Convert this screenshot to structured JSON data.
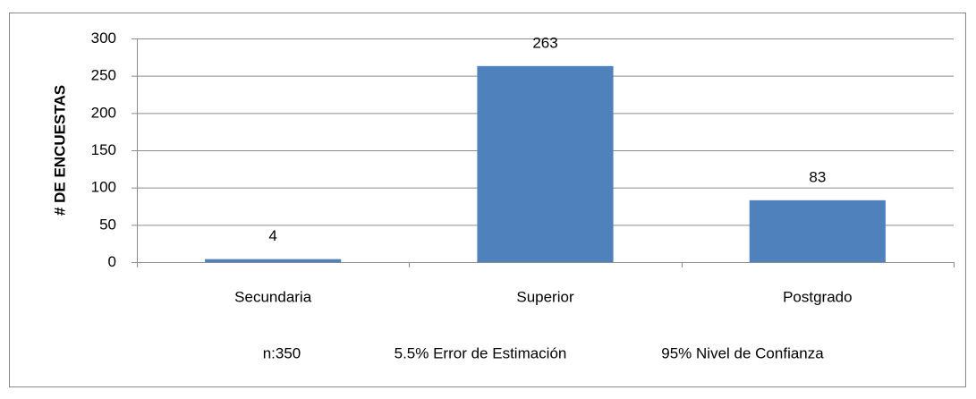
{
  "chart_data": {
    "type": "bar",
    "y_label": "# DE ENCUESTAS",
    "categories": [
      "Secundaria",
      "Superior",
      "Postgrado"
    ],
    "values": [
      4,
      263,
      83
    ],
    "color": "#4f81bd",
    "ylim": [
      0,
      300
    ],
    "yticks": [
      0,
      50,
      100,
      150,
      200,
      250,
      300
    ],
    "grid": true,
    "notes": [
      "n:350",
      "5.5% Error de Estimación",
      "95% Nivel de Confianza"
    ]
  }
}
